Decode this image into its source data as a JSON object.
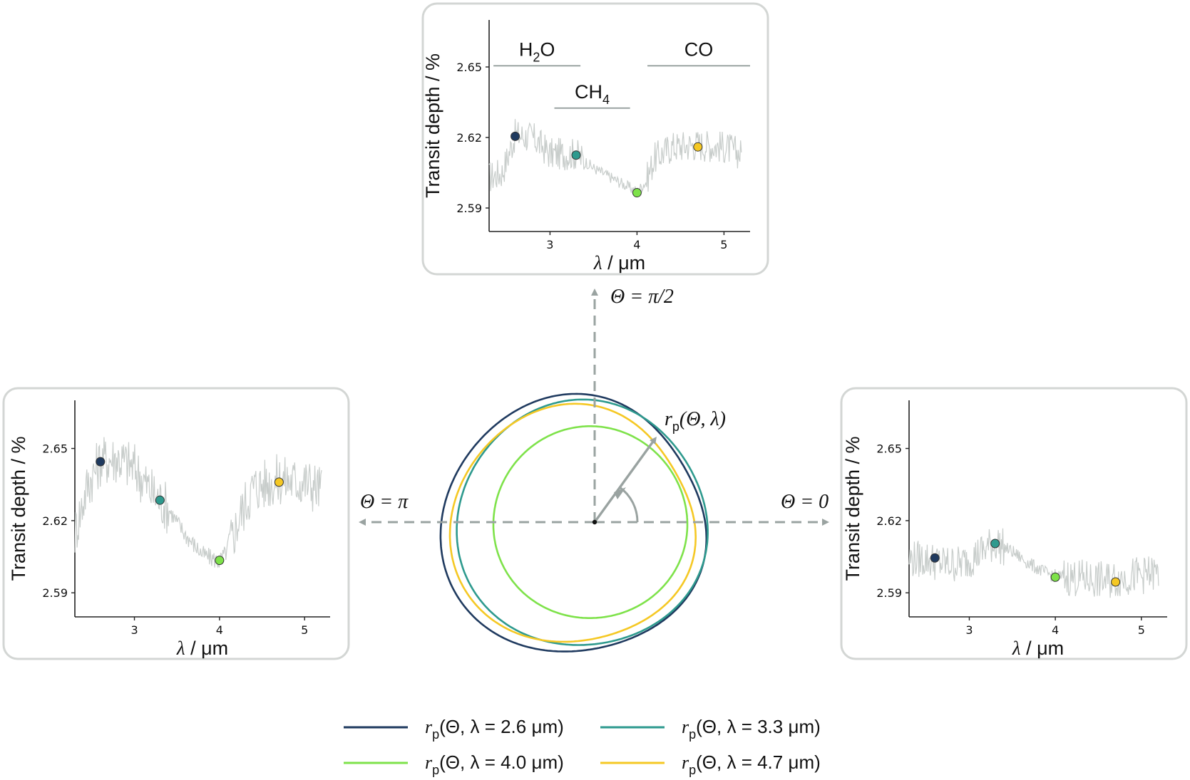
{
  "colors": {
    "series_2_6": "#1f3a5f",
    "series_3_3": "#2e9a8e",
    "series_4_0": "#7ee24a",
    "series_4_7": "#f5c824",
    "spectrum": "#c8cdcb",
    "arrow": "#9aa3a1",
    "panel_border": "#d3d6d4"
  },
  "chart_data": [
    {
      "type": "line",
      "panel": "theta-pi-half",
      "xlabel": "λ / μm",
      "ylabel": "Transit depth / %",
      "x_ticks": [
        "3",
        "4",
        "5"
      ],
      "y_ticks": [
        "2.59",
        "2.62",
        "2.65"
      ],
      "xlim": [
        2.3,
        5.3
      ],
      "ylim": [
        2.58,
        2.67
      ],
      "molecules": [
        {
          "name": "H",
          "sub": "2",
          "tail": "O",
          "x_start": 2.35,
          "x_end": 3.35,
          "y": 2.6505
        },
        {
          "name": "CH",
          "sub": "4",
          "tail": "",
          "x_start": 3.05,
          "x_end": 3.92,
          "y": 2.6325
        },
        {
          "name": "CO",
          "sub": "",
          "tail": "",
          "x_start": 4.12,
          "x_end": 5.3,
          "y": 2.6505
        }
      ],
      "points": [
        {
          "x": 2.6,
          "y": 2.6205,
          "series": "series_2_6"
        },
        {
          "x": 3.3,
          "y": 2.6125,
          "series": "series_3_3"
        },
        {
          "x": 4.0,
          "y": 2.5965,
          "series": "series_4_0"
        },
        {
          "x": 4.7,
          "y": 2.616,
          "series": "series_4_7"
        }
      ],
      "spectrum_shape": [
        [
          2.3,
          2.603
        ],
        [
          2.45,
          2.605
        ],
        [
          2.6,
          2.621
        ],
        [
          2.8,
          2.62
        ],
        [
          3.0,
          2.613
        ],
        [
          3.3,
          2.613
        ],
        [
          3.5,
          2.607
        ],
        [
          3.7,
          2.603
        ],
        [
          3.9,
          2.599
        ],
        [
          4.0,
          2.597
        ],
        [
          4.1,
          2.601
        ],
        [
          4.2,
          2.611
        ],
        [
          4.4,
          2.616
        ],
        [
          4.7,
          2.617
        ],
        [
          5.0,
          2.616
        ],
        [
          5.2,
          2.613
        ]
      ],
      "spectrum_noise": 0.007
    },
    {
      "type": "line",
      "panel": "theta-pi",
      "xlabel": "λ / μm",
      "ylabel": "Transit depth / %",
      "x_ticks": [
        "3",
        "4",
        "5"
      ],
      "y_ticks": [
        "2.59",
        "2.62",
        "2.65"
      ],
      "xlim": [
        2.3,
        5.3
      ],
      "ylim": [
        2.58,
        2.67
      ],
      "molecules": [],
      "points": [
        {
          "x": 2.6,
          "y": 2.6445,
          "series": "series_2_6"
        },
        {
          "x": 3.3,
          "y": 2.6285,
          "series": "series_3_3"
        },
        {
          "x": 4.0,
          "y": 2.6035,
          "series": "series_4_0"
        },
        {
          "x": 4.7,
          "y": 2.636,
          "series": "series_4_7"
        }
      ],
      "spectrum_shape": [
        [
          2.3,
          2.615
        ],
        [
          2.45,
          2.635
        ],
        [
          2.6,
          2.645
        ],
        [
          2.8,
          2.646
        ],
        [
          3.0,
          2.642
        ],
        [
          3.2,
          2.632
        ],
        [
          3.4,
          2.625
        ],
        [
          3.6,
          2.614
        ],
        [
          3.8,
          2.606
        ],
        [
          4.0,
          2.603
        ],
        [
          4.1,
          2.608
        ],
        [
          4.25,
          2.623
        ],
        [
          4.4,
          2.634
        ],
        [
          4.7,
          2.637
        ],
        [
          5.0,
          2.636
        ],
        [
          5.2,
          2.633
        ]
      ],
      "spectrum_noise": 0.011
    },
    {
      "type": "line",
      "panel": "theta-zero",
      "xlabel": "λ / μm",
      "ylabel": "Transit depth / %",
      "x_ticks": [
        "3",
        "4",
        "5"
      ],
      "y_ticks": [
        "2.59",
        "2.62",
        "2.65"
      ],
      "xlim": [
        2.3,
        5.3
      ],
      "ylim": [
        2.58,
        2.67
      ],
      "molecules": [],
      "points": [
        {
          "x": 2.6,
          "y": 2.6045,
          "series": "series_2_6"
        },
        {
          "x": 3.3,
          "y": 2.6105,
          "series": "series_3_3"
        },
        {
          "x": 4.0,
          "y": 2.5965,
          "series": "series_4_0"
        },
        {
          "x": 4.7,
          "y": 2.5945,
          "series": "series_4_7"
        }
      ],
      "spectrum_shape": [
        [
          2.3,
          2.604
        ],
        [
          2.5,
          2.604
        ],
        [
          2.7,
          2.602
        ],
        [
          2.9,
          2.602
        ],
        [
          3.1,
          2.606
        ],
        [
          3.3,
          2.611
        ],
        [
          3.5,
          2.607
        ],
        [
          3.7,
          2.602
        ],
        [
          3.9,
          2.598
        ],
        [
          4.0,
          2.597
        ],
        [
          4.3,
          2.596
        ],
        [
          4.6,
          2.595
        ],
        [
          4.9,
          2.597
        ],
        [
          5.2,
          2.598
        ]
      ],
      "spectrum_noise": 0.008
    }
  ],
  "labels": {
    "theta_half": "Θ = π/2",
    "theta_pi": "Θ = π",
    "theta_zero": "Θ = 0",
    "rp_main": "r",
    "rp_sub": "p",
    "rp_args": "(Θ, λ)"
  },
  "legend": [
    {
      "series": "series_2_6",
      "prefix": "r",
      "sub": "p",
      "text": "(Θ, λ = 2.6 μm)"
    },
    {
      "series": "series_3_3",
      "prefix": "r",
      "sub": "p",
      "text": "(Θ, λ = 3.3 μm)"
    },
    {
      "series": "series_4_0",
      "prefix": "r",
      "sub": "p",
      "text": "(Θ, λ = 4.0 μm)"
    },
    {
      "series": "series_4_7",
      "prefix": "r",
      "sub": "p",
      "text": "(Θ, λ = 4.7 μm)"
    }
  ]
}
